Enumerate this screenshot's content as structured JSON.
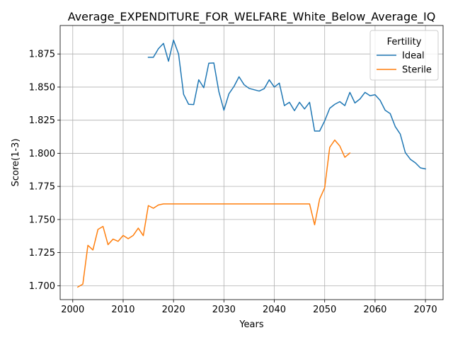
{
  "chart_data": {
    "type": "line",
    "title": "Average_EXPENDITURE_FOR_WELFARE_White_Below_Average_IQ",
    "xlabel": "Years",
    "ylabel": "Score(1-3)",
    "xlim": [
      1997.5,
      2073.5
    ],
    "ylim": [
      1.6895,
      1.8965
    ],
    "xticks": [
      2000,
      2010,
      2020,
      2030,
      2040,
      2050,
      2060,
      2070
    ],
    "yticks": [
      1.7,
      1.725,
      1.75,
      1.775,
      1.8,
      1.825,
      1.85,
      1.875
    ],
    "xtick_labels": [
      "2000",
      "2010",
      "2020",
      "2030",
      "2040",
      "2050",
      "2060",
      "2070"
    ],
    "ytick_labels": [
      "1.700",
      "1.725",
      "1.750",
      "1.775",
      "1.800",
      "1.825",
      "1.850",
      "1.875"
    ],
    "grid": true,
    "legend": {
      "title": "Fertility",
      "placement": "top-right"
    },
    "series": [
      {
        "name": "Ideal",
        "color": "#1f77b4",
        "x": [
          2015,
          2016,
          2017,
          2018,
          2019,
          2020,
          2021,
          2022,
          2023,
          2024,
          2025,
          2026,
          2027,
          2028,
          2029,
          2030,
          2031,
          2032,
          2033,
          2034,
          2035,
          2036,
          2037,
          2038,
          2039,
          2040,
          2041,
          2042,
          2043,
          2044,
          2045,
          2046,
          2047,
          2048,
          2049,
          2050,
          2051,
          2052,
          2053,
          2054,
          2055,
          2056,
          2057,
          2058,
          2059,
          2060,
          2061,
          2062,
          2063,
          2064,
          2065,
          2066,
          2067,
          2068,
          2069,
          2070
        ],
        "y": [
          1.8725,
          1.8725,
          1.879,
          1.883,
          1.8695,
          1.8855,
          1.875,
          1.8445,
          1.837,
          1.8368,
          1.8555,
          1.8495,
          1.868,
          1.8682,
          1.8465,
          1.8325,
          1.845,
          1.8505,
          1.8578,
          1.8518,
          1.849,
          1.848,
          1.847,
          1.8488,
          1.8555,
          1.85,
          1.853,
          1.836,
          1.8385,
          1.8322,
          1.8385,
          1.8335,
          1.8385,
          1.8168,
          1.8168,
          1.8245,
          1.834,
          1.837,
          1.839,
          1.836,
          1.846,
          1.838,
          1.841,
          1.846,
          1.8435,
          1.8442,
          1.84,
          1.8325,
          1.83,
          1.8202,
          1.8145,
          1.8005,
          1.7955,
          1.7928,
          1.789,
          1.7882
        ]
      },
      {
        "name": "Sterile",
        "color": "#ff7f0e",
        "x": [
          2001,
          2002,
          2003,
          2004,
          2005,
          2006,
          2007,
          2008,
          2009,
          2010,
          2011,
          2012,
          2013,
          2014,
          2015,
          2016,
          2017,
          2018,
          2019,
          2020,
          2021,
          2022,
          2023,
          2024,
          2025,
          2026,
          2027,
          2028,
          2029,
          2030,
          2031,
          2032,
          2033,
          2034,
          2035,
          2036,
          2037,
          2038,
          2039,
          2040,
          2041,
          2042,
          2043,
          2044,
          2045,
          2046,
          2047,
          2048,
          2049,
          2050,
          2051,
          2052,
          2053,
          2054,
          2055
        ],
        "y": [
          1.699,
          1.7012,
          1.7305,
          1.727,
          1.7425,
          1.7448,
          1.731,
          1.7352,
          1.7335,
          1.738,
          1.7355,
          1.738,
          1.7435,
          1.7378,
          1.7605,
          1.7585,
          1.761,
          1.7618,
          1.7618,
          1.7618,
          1.7618,
          1.7618,
          1.7618,
          1.7618,
          1.7618,
          1.7618,
          1.7618,
          1.7618,
          1.7618,
          1.7618,
          1.7618,
          1.7618,
          1.7618,
          1.7618,
          1.7618,
          1.7618,
          1.7618,
          1.7618,
          1.7618,
          1.7618,
          1.7618,
          1.7618,
          1.7618,
          1.7618,
          1.7618,
          1.7618,
          1.7618,
          1.746,
          1.7655,
          1.774,
          1.8045,
          1.81,
          1.8055,
          1.797,
          1.8002
        ]
      }
    ]
  }
}
